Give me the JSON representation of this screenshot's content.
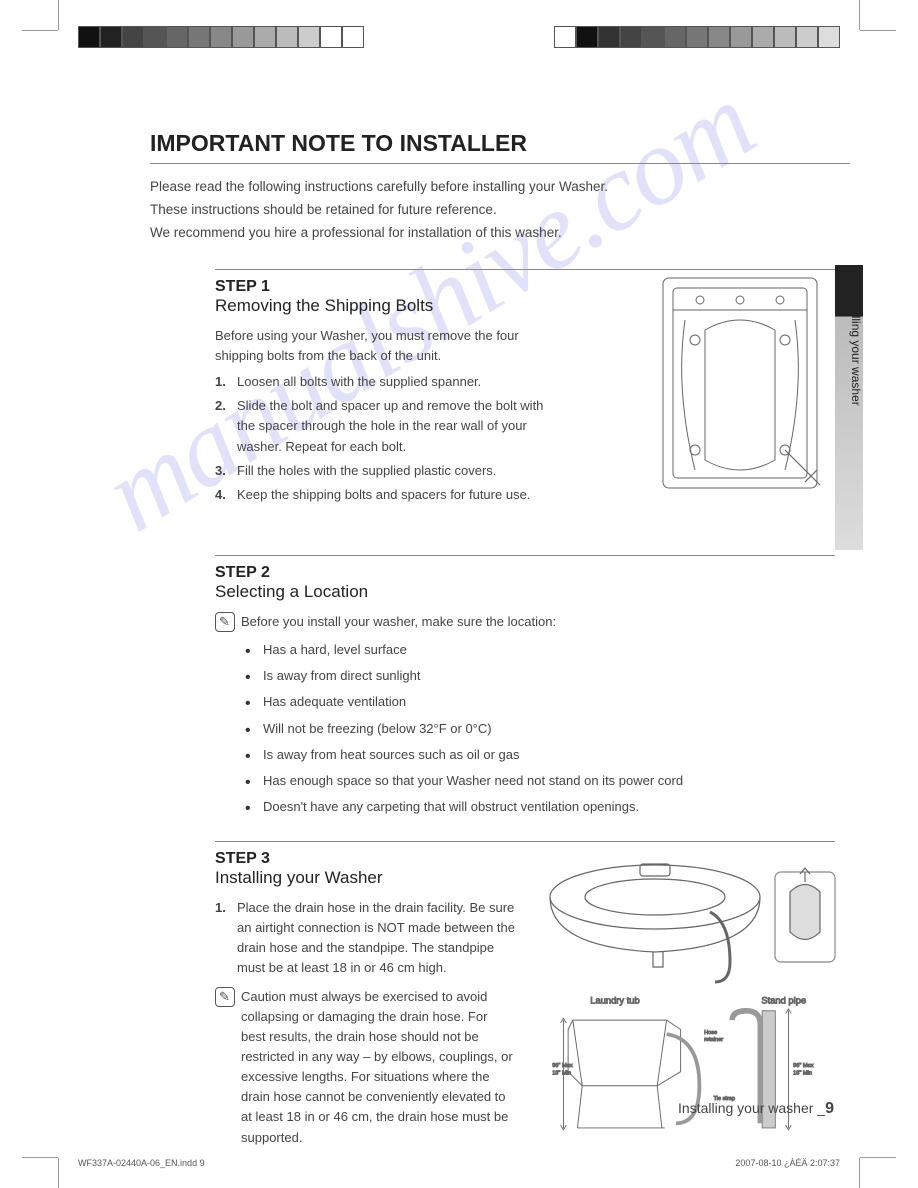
{
  "colorbar_left": [
    "#111",
    "#222",
    "#444",
    "#555",
    "#666",
    "#777",
    "#888",
    "#999",
    "#aaa",
    "#bbb",
    "#ccc",
    "#fff",
    "#fff"
  ],
  "colorbar_right": [
    "#fff",
    "#111",
    "#333",
    "#444",
    "#555",
    "#666",
    "#777",
    "#888",
    "#999",
    "#aaa",
    "#bbb",
    "#ccc",
    "#ddd"
  ],
  "title": "IMPORTANT NOTE TO INSTALLER",
  "intro": [
    "Please read the following instructions carefully before installing your Washer.",
    "These instructions should be retained for future reference.",
    "We recommend you hire a professional for installation of this washer."
  ],
  "step1": {
    "label": "STEP 1",
    "title": "Removing the Shipping Bolts",
    "lead": "Before using your Washer, you must remove the four shipping bolts from the back of the unit.",
    "items": [
      "Loosen all bolts with the supplied spanner.",
      "Slide the bolt and spacer up and remove the bolt with the spacer through the hole in the rear wall of your washer. Repeat for each bolt.",
      "Fill the holes with the supplied plastic covers.",
      "Keep the shipping bolts and spacers for future use."
    ]
  },
  "step2": {
    "label": "STEP 2",
    "title": "Selecting a Location",
    "note": "Before you install your washer, make sure the location:",
    "bullets": [
      "Has a hard, level surface",
      "Is away from direct sunlight",
      "Has adequate ventilation",
      "Will not be freezing (below 32°F or 0°C)",
      "Is away from heat sources such as oil or gas",
      "Has enough space so that your Washer need not stand on its power cord",
      "Doesn't have any carpeting that will obstruct ventilation openings."
    ]
  },
  "step3": {
    "label": "STEP 3",
    "title": "Installing your Washer",
    "item1": "Place the drain hose in the drain facility. Be sure an airtight connection is NOT made between the drain hose and the standpipe. The standpipe must be at least 18 in or 46 cm high.",
    "caution": "Caution must always be exercised to avoid collapsing or damaging the drain hose. For best results, the drain hose should not be restricted in any way – by elbows, couplings, or excessive lengths. For situations where the drain hose cannot be conveniently elevated to at least 18 in or 46 cm, the drain hose must be supported.",
    "fig_labels": {
      "laundry_tub": "Laundry tub",
      "stand_pipe": "Stand pipe",
      "hose_retainer": "Hose retainer",
      "tie_strap": "Tie strap",
      "height1": "96\" Max\n18\" Min",
      "height2": "96\" Max\n18\" Min"
    }
  },
  "side_tab": "01 Installing your washer",
  "footer": {
    "section": "Installing your washer _",
    "page": "9"
  },
  "indd": {
    "left": "WF337A-02440A-06_EN.indd   9",
    "right": "2007-08-10   ¿ÀÈÄ 2:07:37"
  },
  "watermark": "manualshive.com",
  "svg": {
    "stroke": "#555",
    "stroke_light": "#aaa",
    "fill": "none"
  }
}
